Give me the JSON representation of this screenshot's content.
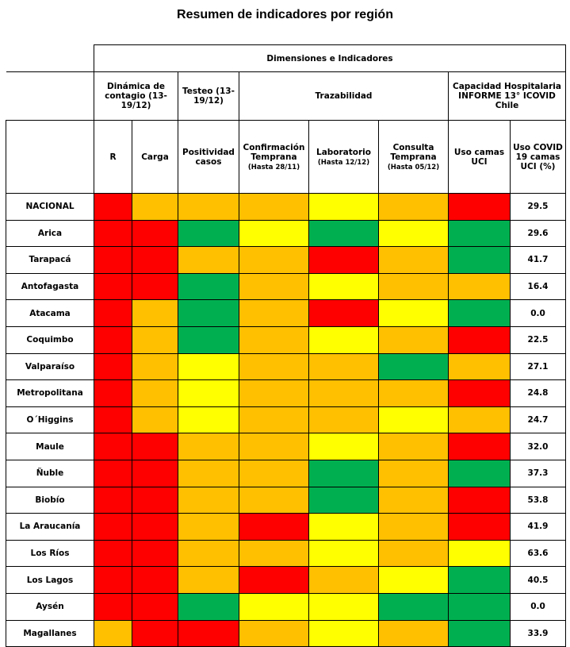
{
  "title": "Resumen de indicadores por región",
  "header": {
    "dimensiones": "Dimensiones e Indicadores",
    "groups": {
      "dinamica": "Dinámica de contagio (13-19/12)",
      "testeo": "Testeo (13-19/12)",
      "trazabilidad": "Trazabilidad",
      "capacidad": "Capacidad Hospitalaria INFORME 13° ICOVID Chile"
    },
    "columns": {
      "r": "R",
      "carga": "Carga",
      "positividad": "Positividad casos",
      "confirmacion": "Confirmación Temprana",
      "confirmacion_sub": "(Hasta 28/11)",
      "laboratorio": "Laboratorio",
      "laboratorio_sub": "(Hasta 12/12)",
      "consulta": "Consulta Temprana",
      "consulta_sub": "(Hasta 05/12)",
      "uso_camas": "Uso camas UCI",
      "uso_covid": "Uso COVID 19 camas UCI (%)"
    }
  },
  "colors": {
    "r": "#ff0000",
    "o": "#ffc000",
    "y": "#ffff00",
    "g": "#00b050"
  },
  "rows": [
    {
      "region": "NACIONAL",
      "cells": [
        "r",
        "o",
        "o",
        "o",
        "y",
        "o",
        "r"
      ],
      "uso_covid": "29.5"
    },
    {
      "region": "Arica",
      "cells": [
        "r",
        "r",
        "g",
        "y",
        "g",
        "y",
        "g"
      ],
      "uso_covid": "29.6"
    },
    {
      "region": "Tarapacá",
      "cells": [
        "r",
        "r",
        "o",
        "o",
        "r",
        "o",
        "g"
      ],
      "uso_covid": "41.7"
    },
    {
      "region": "Antofagasta",
      "cells": [
        "r",
        "r",
        "g",
        "o",
        "y",
        "o",
        "o"
      ],
      "uso_covid": "16.4"
    },
    {
      "region": "Atacama",
      "cells": [
        "r",
        "o",
        "g",
        "o",
        "r",
        "y",
        "g"
      ],
      "uso_covid": "0.0"
    },
    {
      "region": "Coquimbo",
      "cells": [
        "r",
        "o",
        "g",
        "o",
        "y",
        "o",
        "r"
      ],
      "uso_covid": "22.5"
    },
    {
      "region": "Valparaíso",
      "cells": [
        "r",
        "o",
        "y",
        "o",
        "o",
        "g",
        "o"
      ],
      "uso_covid": "27.1"
    },
    {
      "region": "Metropolitana",
      "cells": [
        "r",
        "o",
        "y",
        "o",
        "o",
        "o",
        "r"
      ],
      "uso_covid": "24.8"
    },
    {
      "region": "O´Higgins",
      "cells": [
        "r",
        "o",
        "y",
        "o",
        "o",
        "y",
        "o"
      ],
      "uso_covid": "24.7"
    },
    {
      "region": "Maule",
      "cells": [
        "r",
        "r",
        "o",
        "o",
        "y",
        "o",
        "r"
      ],
      "uso_covid": "32.0"
    },
    {
      "region": "Ñuble",
      "cells": [
        "r",
        "r",
        "o",
        "o",
        "g",
        "o",
        "g"
      ],
      "uso_covid": "37.3"
    },
    {
      "region": "Biobío",
      "cells": [
        "r",
        "r",
        "o",
        "o",
        "g",
        "o",
        "r"
      ],
      "uso_covid": "53.8"
    },
    {
      "region": "La Araucanía",
      "cells": [
        "r",
        "r",
        "o",
        "r",
        "y",
        "o",
        "r"
      ],
      "uso_covid": "41.9"
    },
    {
      "region": "Los Ríos",
      "cells": [
        "r",
        "r",
        "o",
        "o",
        "y",
        "o",
        "y"
      ],
      "uso_covid": "63.6"
    },
    {
      "region": "Los Lagos",
      "cells": [
        "r",
        "r",
        "o",
        "r",
        "o",
        "y",
        "g"
      ],
      "uso_covid": "40.5"
    },
    {
      "region": "Aysén",
      "cells": [
        "r",
        "r",
        "g",
        "y",
        "y",
        "g",
        "g"
      ],
      "uso_covid": "0.0"
    },
    {
      "region": "Magallanes",
      "cells": [
        "o",
        "r",
        "r",
        "o",
        "y",
        "o",
        "g"
      ],
      "uso_covid": "33.9"
    }
  ]
}
